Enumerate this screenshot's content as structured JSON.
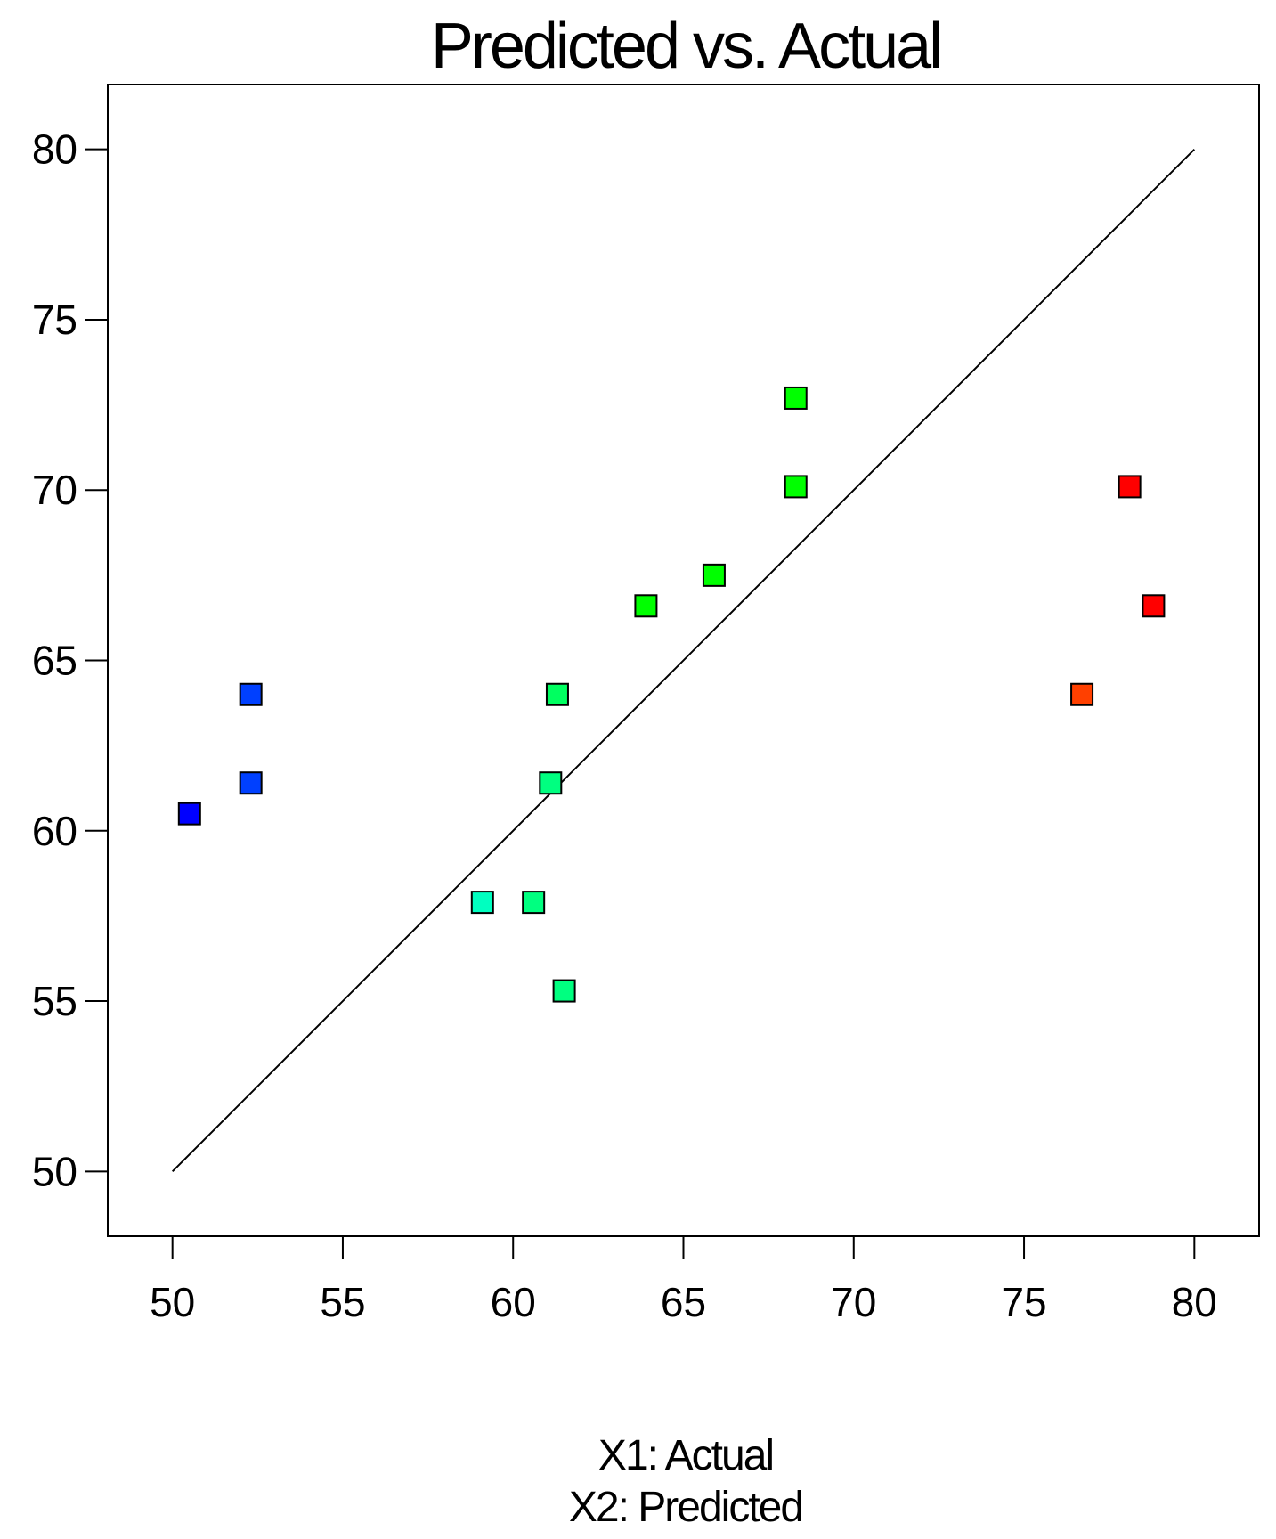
{
  "chart_data": {
    "type": "scatter",
    "title": "Predicted vs. Actual",
    "xlabel_line1": "X1: Actual",
    "xlabel_line2": "X2: Predicted",
    "ylabel": "",
    "xlim": [
      48.1,
      81.9
    ],
    "ylim": [
      48.1,
      81.9
    ],
    "x_ticks": [
      50,
      55,
      60,
      65,
      70,
      75,
      80
    ],
    "y_ticks": [
      50,
      55,
      60,
      65,
      70,
      75,
      80
    ],
    "reference_line": {
      "from": [
        50,
        50
      ],
      "to": [
        80,
        80
      ]
    },
    "grid": false,
    "points": [
      {
        "x": 50.5,
        "y": 60.5,
        "color": "#0000ff"
      },
      {
        "x": 52.3,
        "y": 61.4,
        "color": "#0040ff"
      },
      {
        "x": 52.3,
        "y": 64.0,
        "color": "#0040ff"
      },
      {
        "x": 59.1,
        "y": 57.9,
        "color": "#00ffc0"
      },
      {
        "x": 60.6,
        "y": 57.9,
        "color": "#00ff80"
      },
      {
        "x": 61.1,
        "y": 61.4,
        "color": "#00ff80"
      },
      {
        "x": 61.3,
        "y": 64.0,
        "color": "#00ff60"
      },
      {
        "x": 61.5,
        "y": 55.3,
        "color": "#00ff80"
      },
      {
        "x": 63.9,
        "y": 66.6,
        "color": "#00ff00"
      },
      {
        "x": 65.9,
        "y": 67.5,
        "color": "#00ff00"
      },
      {
        "x": 68.3,
        "y": 72.7,
        "color": "#00ff00"
      },
      {
        "x": 68.3,
        "y": 70.1,
        "color": "#00ff00"
      },
      {
        "x": 76.7,
        "y": 64.0,
        "color": "#ff4000"
      },
      {
        "x": 78.1,
        "y": 70.1,
        "color": "#ff0000"
      },
      {
        "x": 78.8,
        "y": 66.6,
        "color": "#ff0000"
      }
    ]
  }
}
